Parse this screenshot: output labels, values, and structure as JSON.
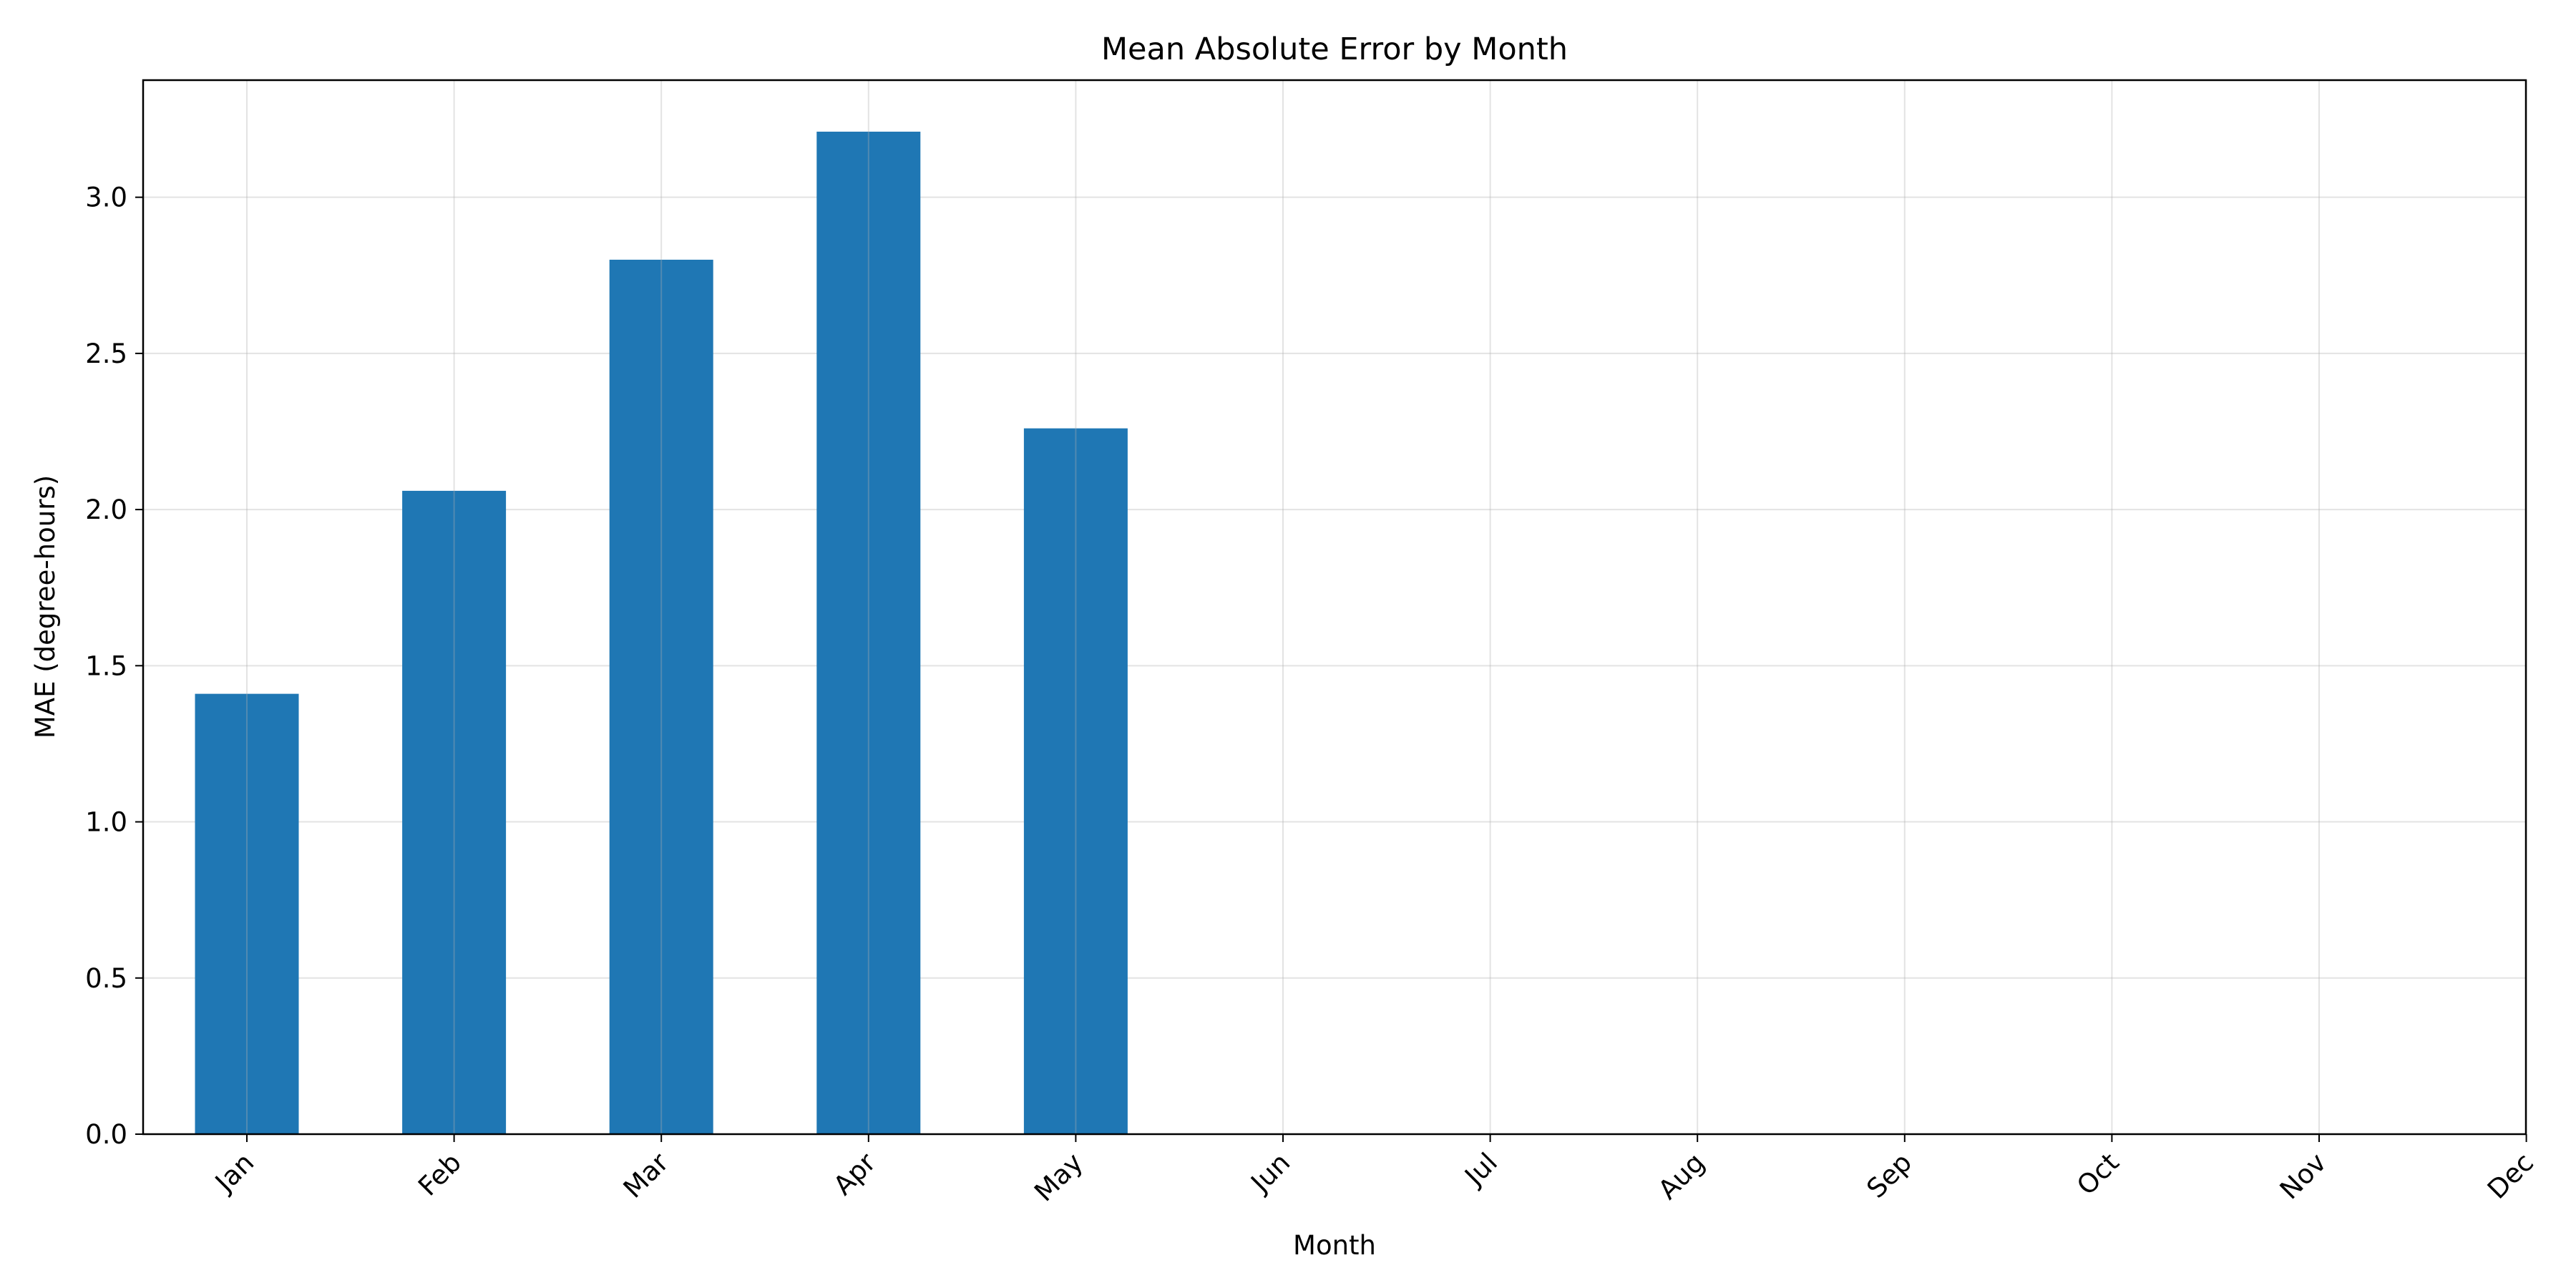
{
  "chart_data": {
    "type": "bar",
    "title": "Mean Absolute Error by Month",
    "xlabel": "Month",
    "ylabel": "MAE (degree-hours)",
    "categories": [
      "Jan",
      "Feb",
      "Mar",
      "Apr",
      "May",
      "Jun",
      "Jul",
      "Aug",
      "Sep",
      "Oct",
      "Nov",
      "Dec"
    ],
    "values": [
      1.41,
      2.06,
      2.8,
      3.21,
      2.26,
      null,
      null,
      null,
      null,
      null,
      null,
      null
    ],
    "ylim": [
      0,
      3.375
    ],
    "yticks": [
      0.0,
      0.5,
      1.0,
      1.5,
      2.0,
      2.5,
      3.0
    ],
    "ytick_labels": [
      "0.0",
      "0.5",
      "1.0",
      "1.5",
      "2.0",
      "2.5",
      "3.0"
    ],
    "bar_color": "#1f77b4",
    "grid": true,
    "xtick_rotation": 45
  }
}
